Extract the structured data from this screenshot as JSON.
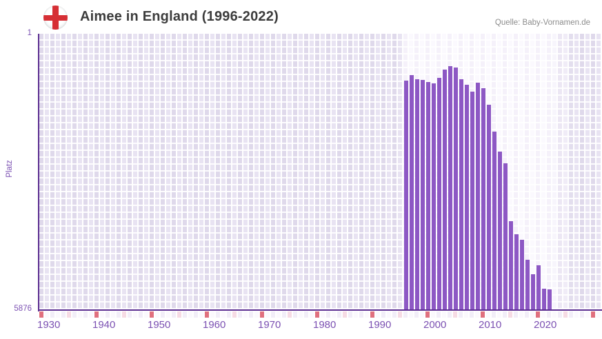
{
  "header": {
    "title": "Aimee in England (1996-2022)",
    "source": "Quelle: Baby-Vornamen.de",
    "flag_icon": "england-flag-icon"
  },
  "axes": {
    "y_label": "Platz",
    "y_top_tick": "1",
    "y_bottom_tick": "5876"
  },
  "chart_data": {
    "type": "bar",
    "title": "Aimee in England (1996-2022)",
    "xlabel": "",
    "ylabel": "Platz",
    "x": [
      1996,
      1997,
      1998,
      1999,
      2000,
      2001,
      2002,
      2003,
      2004,
      2005,
      2006,
      2007,
      2008,
      2009,
      2010,
      2011,
      2012,
      2013,
      2014,
      2015,
      2016,
      2017,
      2018,
      2019,
      2020,
      2021,
      2022
    ],
    "values": [
      1005,
      885,
      975,
      985,
      1035,
      1060,
      935,
      760,
      695,
      720,
      965,
      1090,
      1230,
      1045,
      1160,
      1510,
      2080,
      2510,
      2760,
      3995,
      4275,
      4395,
      4815,
      5130,
      4935,
      5435,
      5450
    ],
    "y_axis": {
      "top_rank": 1,
      "bottom_rank": 5876,
      "inverted": true
    },
    "x_axis": {
      "visible_range": [
        1930,
        2031
      ],
      "tick_years": [
        1930,
        1940,
        1950,
        1960,
        1970,
        1980,
        1990,
        2000,
        2010,
        2020
      ]
    },
    "highlight_band_years": [
      1996,
      2022
    ],
    "legend": "none",
    "grid": "cell-matrix"
  },
  "colors": {
    "bar": "#8d58c4",
    "axis_line": "#5b2e91",
    "tick_label": "#7b50b2",
    "bg_dark_even": "#dfd9eb",
    "bg_dark_odd": "#e8e3f2",
    "bg_light_even": "#f5f1fa",
    "bg_light_odd": "#fbf9fe",
    "strip_decade_red": "#e0707e",
    "strip_half_decade_pink": "#f6dbe4",
    "strip_base_even": "#f2eef8",
    "strip_base_odd": "#fbf9fd",
    "flag_cross_red": "#d62f35",
    "title_text": "#3c3c3c",
    "source_text": "#8c8c8c"
  }
}
